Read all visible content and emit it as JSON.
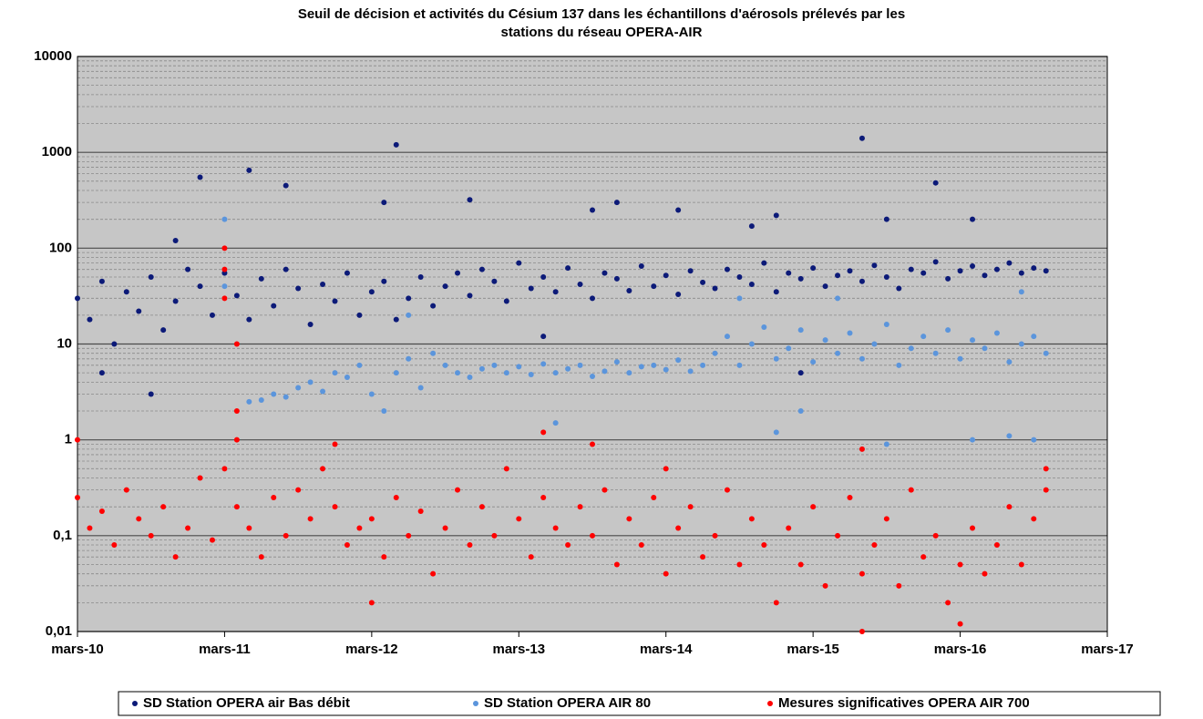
{
  "chart_data": {
    "type": "scatter",
    "title": [
      "Seuil de décision et activités du Césium 137 dans les échantillons d'aérosols prélevés  par les",
      "stations du réseau OPERA-AIR"
    ],
    "xlim": [
      "2010-03",
      "2017-03"
    ],
    "xticks": [
      {
        "value": "2010-03",
        "label": "mars-10"
      },
      {
        "value": "2011-03",
        "label": "mars-11"
      },
      {
        "value": "2012-03",
        "label": "mars-12"
      },
      {
        "value": "2013-03",
        "label": "mars-13"
      },
      {
        "value": "2014-03",
        "label": "mars-14"
      },
      {
        "value": "2015-03",
        "label": "mars-15"
      },
      {
        "value": "2016-03",
        "label": "mars-16"
      },
      {
        "value": "2017-03",
        "label": "mars-17"
      }
    ],
    "ylim": [
      0.01,
      10000
    ],
    "log_scale": true,
    "grid": true,
    "legend": "bottom",
    "yticks": [
      {
        "value": 0.01,
        "label": "0,01"
      },
      {
        "value": 0.1,
        "label": "0,1"
      },
      1,
      10,
      100,
      1000,
      10000
    ],
    "series": [
      {
        "name": "SD Station OPERA air Bas débit",
        "color": "#0c1a78",
        "x": [
          "2010-03",
          "2010-04",
          "2010-05",
          "2010-06",
          "2010-07",
          "2010-08",
          "2010-09",
          "2010-10",
          "2010-11",
          "2010-12",
          "2011-01",
          "2011-02",
          "2011-03",
          "2011-04",
          "2011-05",
          "2011-06",
          "2011-07",
          "2011-08",
          "2011-09",
          "2011-10",
          "2011-11",
          "2011-12",
          "2012-01",
          "2012-02",
          "2012-03",
          "2012-04",
          "2012-05",
          "2012-06",
          "2012-07",
          "2012-08",
          "2012-09",
          "2012-10",
          "2012-11",
          "2012-12",
          "2013-01",
          "2013-02",
          "2013-03",
          "2013-04",
          "2013-05",
          "2013-06",
          "2013-07",
          "2013-08",
          "2013-09",
          "2013-10",
          "2013-11",
          "2013-12",
          "2014-01",
          "2014-02",
          "2014-03",
          "2014-04",
          "2014-05",
          "2014-06",
          "2014-07",
          "2014-08",
          "2014-09",
          "2014-10",
          "2014-11",
          "2014-12",
          "2015-01",
          "2015-02",
          "2015-03",
          "2015-04",
          "2015-05",
          "2015-06",
          "2015-07",
          "2015-08",
          "2015-09",
          "2015-10",
          "2015-11",
          "2015-12",
          "2016-01",
          "2016-02",
          "2016-03",
          "2016-04",
          "2016-05",
          "2016-06",
          "2016-07",
          "2016-08",
          "2016-09",
          "2016-10",
          "2010-05",
          "2010-09",
          "2010-11",
          "2011-01",
          "2011-05",
          "2011-08",
          "2012-05",
          "2012-04",
          "2012-11",
          "2013-09",
          "2013-11",
          "2014-04",
          "2014-12",
          "2015-07",
          "2015-09",
          "2016-01",
          "2016-04",
          "2014-10",
          "2015-02",
          "2013-05"
        ],
        "values": [
          30,
          18,
          45,
          10,
          35,
          22,
          50,
          14,
          28,
          60,
          40,
          20,
          55,
          32,
          18,
          48,
          25,
          60,
          38,
          16,
          42,
          28,
          55,
          20,
          35,
          45,
          18,
          30,
          50,
          25,
          40,
          55,
          32,
          60,
          45,
          28,
          70,
          38,
          50,
          35,
          62,
          42,
          30,
          55,
          48,
          36,
          65,
          40,
          52,
          33,
          58,
          44,
          38,
          60,
          50,
          42,
          70,
          35,
          55,
          48,
          62,
          40,
          52,
          58,
          45,
          66,
          50,
          38,
          60,
          55,
          72,
          48,
          58,
          65,
          52,
          60,
          70,
          55,
          62,
          58,
          5,
          3,
          120,
          550,
          650,
          450,
          1200,
          300,
          320,
          250,
          300,
          250,
          220,
          1400,
          200,
          480,
          200,
          170,
          5,
          12
        ]
      },
      {
        "name": "SD Station OPERA AIR 80",
        "color": "#5b95dc",
        "x": [
          "2011-05",
          "2011-06",
          "2011-07",
          "2011-08",
          "2011-09",
          "2011-10",
          "2011-11",
          "2011-12",
          "2012-01",
          "2012-02",
          "2012-03",
          "2012-04",
          "2012-05",
          "2012-06",
          "2012-07",
          "2012-08",
          "2012-09",
          "2012-10",
          "2012-11",
          "2012-12",
          "2013-01",
          "2013-02",
          "2013-03",
          "2013-04",
          "2013-05",
          "2013-06",
          "2013-07",
          "2013-08",
          "2013-09",
          "2013-10",
          "2013-11",
          "2013-12",
          "2014-01",
          "2014-02",
          "2014-03",
          "2014-04",
          "2014-05",
          "2014-06",
          "2014-07",
          "2014-08",
          "2014-09",
          "2014-10",
          "2014-11",
          "2014-12",
          "2015-01",
          "2015-02",
          "2015-03",
          "2015-04",
          "2015-05",
          "2015-06",
          "2015-07",
          "2015-08",
          "2015-09",
          "2015-10",
          "2015-11",
          "2015-12",
          "2016-01",
          "2016-02",
          "2016-03",
          "2016-04",
          "2016-05",
          "2016-06",
          "2016-07",
          "2016-08",
          "2016-09",
          "2016-10",
          "2011-03",
          "2011-03",
          "2012-06",
          "2013-06",
          "2014-09",
          "2015-05",
          "2015-09",
          "2016-04",
          "2016-07",
          "2016-09",
          "2016-08",
          "2015-02",
          "2014-12"
        ],
        "values": [
          2.5,
          2.6,
          3,
          2.8,
          3.5,
          4,
          3.2,
          5,
          4.5,
          6,
          3,
          2,
          5,
          7,
          3.5,
          8,
          6,
          5,
          4.5,
          5.5,
          6,
          5,
          5.8,
          4.8,
          6.2,
          5,
          5.5,
          6,
          4.6,
          5.2,
          6.5,
          5,
          5.8,
          6,
          5.4,
          6.8,
          5.2,
          6,
          8,
          12,
          6,
          10,
          15,
          7,
          9,
          14,
          6.5,
          11,
          8,
          13,
          7,
          10,
          16,
          6,
          9,
          12,
          8,
          14,
          7,
          11,
          9,
          13,
          6.5,
          10,
          12,
          8,
          40,
          200,
          20,
          1.5,
          30,
          30,
          0.9,
          1,
          1.1,
          1,
          35,
          2,
          1.2
        ]
      },
      {
        "name": "Mesures significatives OPERA AIR 700",
        "color": "#ff0000",
        "x": [
          "2010-03",
          "2010-04",
          "2010-05",
          "2010-06",
          "2010-07",
          "2010-08",
          "2010-09",
          "2010-10",
          "2010-11",
          "2010-12",
          "2011-01",
          "2011-02",
          "2011-03",
          "2011-04",
          "2011-05",
          "2011-06",
          "2011-07",
          "2011-08",
          "2011-09",
          "2011-10",
          "2011-11",
          "2011-12",
          "2012-01",
          "2012-02",
          "2012-03",
          "2012-04",
          "2012-05",
          "2012-06",
          "2012-07",
          "2012-08",
          "2012-09",
          "2012-10",
          "2012-11",
          "2012-12",
          "2013-01",
          "2013-02",
          "2013-03",
          "2013-04",
          "2013-05",
          "2013-06",
          "2013-07",
          "2013-08",
          "2013-09",
          "2013-10",
          "2013-11",
          "2013-12",
          "2014-01",
          "2014-02",
          "2014-03",
          "2014-04",
          "2014-05",
          "2014-06",
          "2014-07",
          "2014-08",
          "2014-09",
          "2014-10",
          "2014-11",
          "2014-12",
          "2015-01",
          "2015-02",
          "2015-03",
          "2015-04",
          "2015-05",
          "2015-06",
          "2015-07",
          "2015-08",
          "2015-09",
          "2015-10",
          "2015-11",
          "2015-12",
          "2016-01",
          "2016-02",
          "2016-03",
          "2016-04",
          "2016-05",
          "2016-06",
          "2016-07",
          "2016-08",
          "2016-09",
          "2016-10",
          "2011-03",
          "2011-03",
          "2011-03",
          "2011-04",
          "2011-04",
          "2011-04",
          "2010-03",
          "2013-05",
          "2011-12",
          "2013-09",
          "2014-03",
          "2015-07",
          "2016-10",
          "2012-03",
          "2015-07",
          "2016-03"
        ],
        "values": [
          0.25,
          0.12,
          0.18,
          0.08,
          0.3,
          0.15,
          0.1,
          0.2,
          0.06,
          0.12,
          0.4,
          0.09,
          0.5,
          0.2,
          0.12,
          0.06,
          0.25,
          0.1,
          0.3,
          0.15,
          0.5,
          0.2,
          0.08,
          0.12,
          0.15,
          0.06,
          0.25,
          0.1,
          0.18,
          0.04,
          0.12,
          0.3,
          0.08,
          0.2,
          0.1,
          0.5,
          0.15,
          0.06,
          0.25,
          0.12,
          0.08,
          0.2,
          0.1,
          0.3,
          0.05,
          0.15,
          0.08,
          0.25,
          0.04,
          0.12,
          0.2,
          0.06,
          0.1,
          0.3,
          0.05,
          0.15,
          0.08,
          0.02,
          0.12,
          0.05,
          0.2,
          0.03,
          0.1,
          0.25,
          0.04,
          0.08,
          0.15,
          0.03,
          0.3,
          0.06,
          0.1,
          0.02,
          0.05,
          0.12,
          0.04,
          0.08,
          0.2,
          0.05,
          0.15,
          0.3,
          100,
          60,
          30,
          10,
          2,
          1,
          1,
          1.2,
          0.9,
          0.9,
          0.5,
          0.8,
          0.5,
          0.02,
          0.01,
          0.012
        ]
      }
    ]
  }
}
